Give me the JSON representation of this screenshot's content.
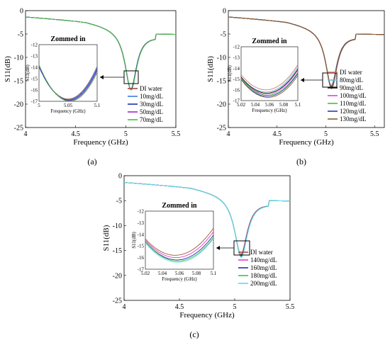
{
  "chart_data": [
    {
      "type": "line",
      "panel_label": "(a)",
      "xlabel": "Frequency (GHz)",
      "ylabel": "S11(dB)",
      "xlim": [
        4,
        5.5
      ],
      "ylim": [
        -25,
        0
      ],
      "xticks": [
        "4",
        "4.5",
        "5",
        "5.5"
      ],
      "yticks": [
        "0",
        "-5",
        "-10",
        "-15",
        "-20",
        "-25"
      ],
      "legend_position": "lower-right",
      "series": [
        {
          "name": "DI water",
          "color": "#9b4a3a",
          "min_db": -16.8,
          "fc": 5.05
        },
        {
          "name": "10mg/dL",
          "color": "#3a7dd6",
          "min_db": -16.85,
          "fc": 5.05
        },
        {
          "name": "30mg/dL",
          "color": "#1f2fb0",
          "min_db": -16.9,
          "fc": 5.051
        },
        {
          "name": "50mg/dL",
          "color": "#a02ad0",
          "min_db": -16.95,
          "fc": 5.052
        },
        {
          "name": "70mg/dL",
          "color": "#44c040",
          "min_db": -17.0,
          "fc": 5.053
        }
      ],
      "inset": {
        "title": "Zommed in",
        "xlabel": "Frequency (GHz)",
        "ylabel": "S11(dB)",
        "xlim": [
          5,
          5.1
        ],
        "ylim": [
          -17,
          -12
        ],
        "xticks": [
          "5",
          "5.05",
          "5.1"
        ],
        "yticks": [
          "-12",
          "-13",
          "-14",
          "-15",
          "-16",
          "-17"
        ]
      }
    },
    {
      "type": "line",
      "panel_label": "(b)",
      "xlabel": "Frequency (GHz)",
      "ylabel": "S11(dB)",
      "xlim": [
        4,
        5.6
      ],
      "ylim": [
        -25,
        0
      ],
      "xticks": [
        "4",
        "4.5",
        "5",
        "5.5"
      ],
      "yticks": [
        "0",
        "-5",
        "-10",
        "-15",
        "-20",
        "-25"
      ],
      "legend_position": "lower-right",
      "series": [
        {
          "name": "DI water",
          "color": "#d77a6a",
          "min_db": -16.0,
          "fc": 5.055
        },
        {
          "name": "80mg/dL",
          "color": "#5bc3e0",
          "min_db": -16.2,
          "fc": 5.055
        },
        {
          "name": "90mg/dL",
          "color": "#111111",
          "min_db": -16.3,
          "fc": 5.056
        },
        {
          "name": "100mg/dL",
          "color": "#e040e0",
          "min_db": -16.4,
          "fc": 5.056
        },
        {
          "name": "110mg/dL",
          "color": "#44c040",
          "min_db": -16.5,
          "fc": 5.057
        },
        {
          "name": "120mg/dL",
          "color": "#1f3fc0",
          "min_db": -16.6,
          "fc": 5.057
        },
        {
          "name": "130mg/dL",
          "color": "#8b5a2b",
          "min_db": -16.7,
          "fc": 5.058
        }
      ],
      "inset": {
        "title": "Zommed in",
        "xlabel": "Frequency (GHz)",
        "ylabel": "S11(dB)",
        "xlim": [
          5.02,
          5.1
        ],
        "ylim": [
          -17,
          -12
        ],
        "xticks": [
          "5.02",
          "5.04",
          "5.06",
          "5.08",
          "5.1"
        ],
        "yticks": [
          "-12",
          "-13",
          "-14",
          "-15",
          "-16",
          "-17"
        ]
      }
    },
    {
      "type": "line",
      "panel_label": "(c)",
      "xlabel": "Frequency (GHz)",
      "ylabel": "S11(dB)",
      "xlim": [
        4,
        5.5
      ],
      "ylim": [
        -25,
        0
      ],
      "xticks": [
        "4",
        "4.5",
        "5",
        "5.5"
      ],
      "yticks": [
        "0",
        "-5",
        "-10",
        "-15",
        "-20",
        "-25"
      ],
      "legend_position": "lower-right",
      "series": [
        {
          "name": "DI water",
          "color": "#a0523a",
          "min_db": -15.8,
          "fc": 5.055
        },
        {
          "name": "140mg/dL",
          "color": "#e040c0",
          "min_db": -16.0,
          "fc": 5.056
        },
        {
          "name": "160mg/dL",
          "color": "#1f2fb0",
          "min_db": -16.2,
          "fc": 5.057
        },
        {
          "name": "180mg/dL",
          "color": "#44c040",
          "min_db": -16.3,
          "fc": 5.058
        },
        {
          "name": "200mg/dL",
          "color": "#66d6ee",
          "min_db": -16.4,
          "fc": 5.058
        }
      ],
      "inset": {
        "title": "Zommed in",
        "xlabel": "Frequency (GHz)",
        "ylabel": "S11(dB)",
        "xlim": [
          5.02,
          5.1
        ],
        "ylim": [
          -17,
          -12
        ],
        "xticks": [
          "5.02",
          "5.04",
          "5.06",
          "5.08",
          "5.1"
        ],
        "yticks": [
          "-12",
          "-13",
          "-14",
          "-15",
          "-16",
          "-17"
        ]
      }
    }
  ]
}
